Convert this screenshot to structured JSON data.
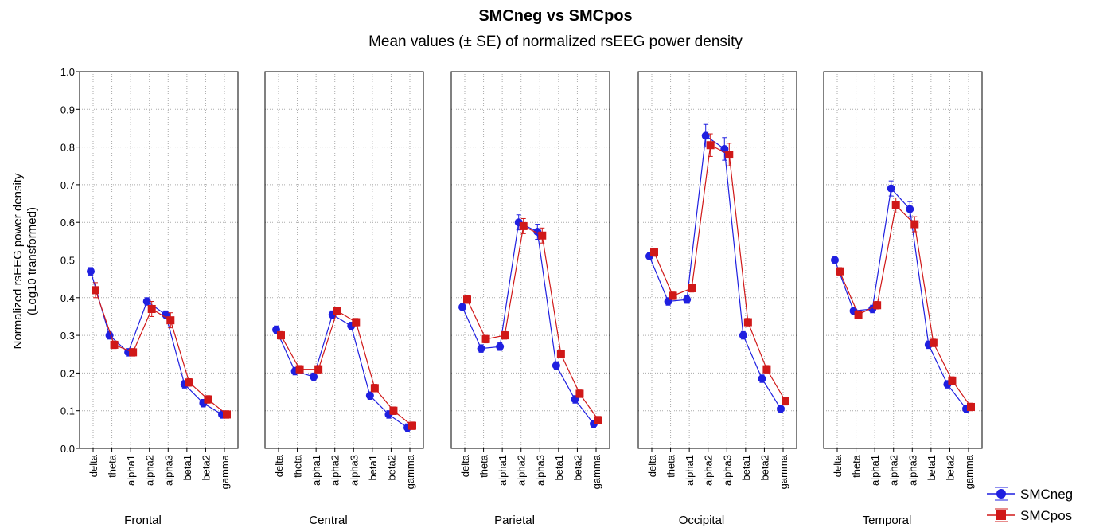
{
  "title": "SMCneg vs SMCpos",
  "subtitle": "Mean values (± SE) of normalized rsEEG power density",
  "y_label": [
    "Normalized rsEEG power density",
    "(Log10 transformed)"
  ],
  "chart_data": [
    {
      "type": "line",
      "xlabel": "Frontal",
      "categories": [
        "delta",
        "theta",
        "alpha1",
        "alpha2",
        "alpha3",
        "beta1",
        "beta2",
        "gamma"
      ],
      "ylim": [
        0,
        1
      ],
      "yticks": [
        {
          "value": 0,
          "label": "0.0"
        },
        0.1,
        0.2,
        0.3,
        0.4,
        0.5,
        0.6,
        0.7,
        0.8,
        0.9,
        {
          "value": 1,
          "label": "1.0"
        }
      ],
      "grid": true,
      "legend": "bottom right",
      "series": [
        {
          "name": "SMCneg",
          "color": "#1f1fe0",
          "values": [
            0.47,
            0.3,
            0.255,
            0.39,
            0.355,
            0.17,
            0.12,
            0.09
          ],
          "errors": [
            0.01,
            0.01,
            0.01,
            0.01,
            0.01,
            0.01,
            0.01,
            0.01
          ]
        },
        {
          "name": "SMCpos",
          "color": "#d01818",
          "values": [
            0.42,
            0.275,
            0.255,
            0.37,
            0.34,
            0.175,
            0.13,
            0.09
          ],
          "errors": [
            0.02,
            0.01,
            0.01,
            0.02,
            0.02,
            0.01,
            0.01,
            0.01
          ]
        }
      ]
    },
    {
      "type": "line",
      "xlabel": "Central",
      "categories": [
        "delta",
        "theta",
        "alpha1",
        "alpha2",
        "alpha3",
        "beta1",
        "beta2",
        "gamma"
      ],
      "series": [
        {
          "values": [
            0.315,
            0.205,
            0.19,
            0.355,
            0.325,
            0.14,
            0.09,
            0.055
          ],
          "errors": [
            0.01,
            0.01,
            0.01,
            0.01,
            0.01,
            0.01,
            0.01,
            0.01
          ]
        },
        {
          "values": [
            0.3,
            0.21,
            0.21,
            0.365,
            0.335,
            0.16,
            0.1,
            0.06
          ],
          "errors": [
            0.01,
            0.01,
            0.01,
            0.01,
            0.01,
            0.01,
            0.01,
            0.01
          ]
        }
      ]
    },
    {
      "type": "line",
      "xlabel": "Parietal",
      "categories": [
        "delta",
        "theta",
        "alpha1",
        "alpha2",
        "alpha3",
        "beta1",
        "beta2",
        "gamma"
      ],
      "series": [
        {
          "values": [
            0.375,
            0.265,
            0.27,
            0.6,
            0.575,
            0.22,
            0.13,
            0.065
          ],
          "errors": [
            0.01,
            0.01,
            0.01,
            0.02,
            0.02,
            0.01,
            0.01,
            0.01
          ]
        },
        {
          "values": [
            0.395,
            0.29,
            0.3,
            0.59,
            0.565,
            0.25,
            0.145,
            0.075
          ],
          "errors": [
            0.01,
            0.01,
            0.01,
            0.02,
            0.02,
            0.01,
            0.01,
            0.01
          ]
        }
      ]
    },
    {
      "type": "line",
      "xlabel": "Occipital",
      "categories": [
        "delta",
        "theta",
        "alpha1",
        "alpha2",
        "alpha3",
        "beta1",
        "beta2",
        "gamma"
      ],
      "series": [
        {
          "values": [
            0.51,
            0.39,
            0.395,
            0.83,
            0.795,
            0.3,
            0.185,
            0.105
          ],
          "errors": [
            0.01,
            0.01,
            0.01,
            0.03,
            0.03,
            0.01,
            0.01,
            0.01
          ]
        },
        {
          "values": [
            0.52,
            0.405,
            0.425,
            0.805,
            0.78,
            0.335,
            0.21,
            0.125
          ],
          "errors": [
            0.01,
            0.01,
            0.01,
            0.03,
            0.03,
            0.01,
            0.01,
            0.01
          ]
        }
      ]
    },
    {
      "type": "line",
      "xlabel": "Temporal",
      "categories": [
        "delta",
        "theta",
        "alpha1",
        "alpha2",
        "alpha3",
        "beta1",
        "beta2",
        "gamma"
      ],
      "series": [
        {
          "values": [
            0.5,
            0.365,
            0.37,
            0.69,
            0.635,
            0.275,
            0.17,
            0.105
          ],
          "errors": [
            0.01,
            0.01,
            0.01,
            0.02,
            0.02,
            0.01,
            0.01,
            0.01
          ]
        },
        {
          "values": [
            0.47,
            0.355,
            0.38,
            0.645,
            0.595,
            0.28,
            0.18,
            0.11
          ],
          "errors": [
            0.01,
            0.01,
            0.01,
            0.02,
            0.02,
            0.01,
            0.01,
            0.01
          ]
        }
      ]
    }
  ]
}
